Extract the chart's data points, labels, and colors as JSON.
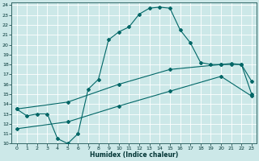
{
  "xlabel": "Humidex (Indice chaleur)",
  "bg_color": "#cce8e8",
  "grid_color": "#ffffff",
  "line_color": "#006666",
  "xlim": [
    -0.5,
    23.5
  ],
  "ylim": [
    10,
    24.3
  ],
  "xticks": [
    0,
    1,
    2,
    3,
    4,
    5,
    6,
    7,
    8,
    9,
    10,
    11,
    12,
    13,
    14,
    15,
    16,
    17,
    18,
    19,
    20,
    21,
    22,
    23
  ],
  "yticks": [
    10,
    11,
    12,
    13,
    14,
    15,
    16,
    17,
    18,
    19,
    20,
    21,
    22,
    23,
    24
  ],
  "curve1_x": [
    0,
    1,
    2,
    3,
    4,
    5,
    6,
    7,
    8,
    9,
    10,
    11,
    12,
    13,
    14,
    15,
    16,
    17,
    18,
    19,
    20,
    21,
    22,
    23
  ],
  "curve1_y": [
    13.5,
    12.8,
    13.0,
    13.0,
    10.5,
    10.0,
    11.0,
    15.5,
    16.5,
    20.5,
    21.3,
    21.8,
    23.1,
    23.7,
    23.8,
    23.7,
    21.5,
    20.2,
    18.2,
    18.0,
    18.0,
    18.0,
    18.0,
    15.0
  ],
  "curve2_x": [
    0,
    5,
    10,
    15,
    20,
    23
  ],
  "curve2_y": [
    11.5,
    12.2,
    13.8,
    15.3,
    16.8,
    14.8
  ],
  "curve3_x": [
    0,
    5,
    10,
    15,
    20,
    21,
    22,
    23
  ],
  "curve3_y": [
    13.5,
    14.2,
    16.0,
    17.5,
    18.0,
    18.1,
    18.0,
    16.3
  ]
}
